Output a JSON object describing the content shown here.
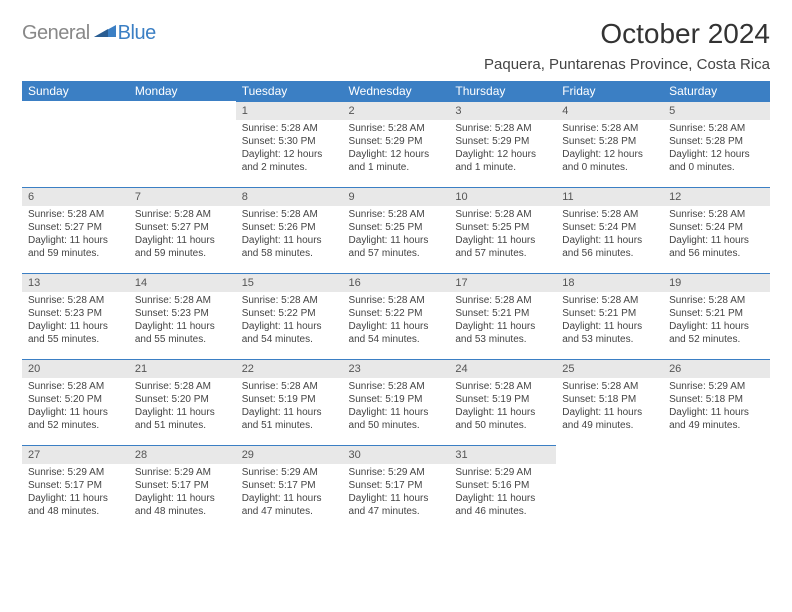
{
  "brand": {
    "part1": "General",
    "part2": "Blue"
  },
  "title": "October 2024",
  "location": "Paquera, Puntarenas Province, Costa Rica",
  "colors": {
    "accent": "#3b7fc4",
    "daybar": "#e8e8e8",
    "text": "#444444",
    "background": "#ffffff"
  },
  "dayHeaders": [
    "Sunday",
    "Monday",
    "Tuesday",
    "Wednesday",
    "Thursday",
    "Friday",
    "Saturday"
  ],
  "weeks": [
    [
      null,
      null,
      {
        "n": "1",
        "sr": "Sunrise: 5:28 AM",
        "ss": "Sunset: 5:30 PM",
        "dl": "Daylight: 12 hours and 2 minutes."
      },
      {
        "n": "2",
        "sr": "Sunrise: 5:28 AM",
        "ss": "Sunset: 5:29 PM",
        "dl": "Daylight: 12 hours and 1 minute."
      },
      {
        "n": "3",
        "sr": "Sunrise: 5:28 AM",
        "ss": "Sunset: 5:29 PM",
        "dl": "Daylight: 12 hours and 1 minute."
      },
      {
        "n": "4",
        "sr": "Sunrise: 5:28 AM",
        "ss": "Sunset: 5:28 PM",
        "dl": "Daylight: 12 hours and 0 minutes."
      },
      {
        "n": "5",
        "sr": "Sunrise: 5:28 AM",
        "ss": "Sunset: 5:28 PM",
        "dl": "Daylight: 12 hours and 0 minutes."
      }
    ],
    [
      {
        "n": "6",
        "sr": "Sunrise: 5:28 AM",
        "ss": "Sunset: 5:27 PM",
        "dl": "Daylight: 11 hours and 59 minutes."
      },
      {
        "n": "7",
        "sr": "Sunrise: 5:28 AM",
        "ss": "Sunset: 5:27 PM",
        "dl": "Daylight: 11 hours and 59 minutes."
      },
      {
        "n": "8",
        "sr": "Sunrise: 5:28 AM",
        "ss": "Sunset: 5:26 PM",
        "dl": "Daylight: 11 hours and 58 minutes."
      },
      {
        "n": "9",
        "sr": "Sunrise: 5:28 AM",
        "ss": "Sunset: 5:25 PM",
        "dl": "Daylight: 11 hours and 57 minutes."
      },
      {
        "n": "10",
        "sr": "Sunrise: 5:28 AM",
        "ss": "Sunset: 5:25 PM",
        "dl": "Daylight: 11 hours and 57 minutes."
      },
      {
        "n": "11",
        "sr": "Sunrise: 5:28 AM",
        "ss": "Sunset: 5:24 PM",
        "dl": "Daylight: 11 hours and 56 minutes."
      },
      {
        "n": "12",
        "sr": "Sunrise: 5:28 AM",
        "ss": "Sunset: 5:24 PM",
        "dl": "Daylight: 11 hours and 56 minutes."
      }
    ],
    [
      {
        "n": "13",
        "sr": "Sunrise: 5:28 AM",
        "ss": "Sunset: 5:23 PM",
        "dl": "Daylight: 11 hours and 55 minutes."
      },
      {
        "n": "14",
        "sr": "Sunrise: 5:28 AM",
        "ss": "Sunset: 5:23 PM",
        "dl": "Daylight: 11 hours and 55 minutes."
      },
      {
        "n": "15",
        "sr": "Sunrise: 5:28 AM",
        "ss": "Sunset: 5:22 PM",
        "dl": "Daylight: 11 hours and 54 minutes."
      },
      {
        "n": "16",
        "sr": "Sunrise: 5:28 AM",
        "ss": "Sunset: 5:22 PM",
        "dl": "Daylight: 11 hours and 54 minutes."
      },
      {
        "n": "17",
        "sr": "Sunrise: 5:28 AM",
        "ss": "Sunset: 5:21 PM",
        "dl": "Daylight: 11 hours and 53 minutes."
      },
      {
        "n": "18",
        "sr": "Sunrise: 5:28 AM",
        "ss": "Sunset: 5:21 PM",
        "dl": "Daylight: 11 hours and 53 minutes."
      },
      {
        "n": "19",
        "sr": "Sunrise: 5:28 AM",
        "ss": "Sunset: 5:21 PM",
        "dl": "Daylight: 11 hours and 52 minutes."
      }
    ],
    [
      {
        "n": "20",
        "sr": "Sunrise: 5:28 AM",
        "ss": "Sunset: 5:20 PM",
        "dl": "Daylight: 11 hours and 52 minutes."
      },
      {
        "n": "21",
        "sr": "Sunrise: 5:28 AM",
        "ss": "Sunset: 5:20 PM",
        "dl": "Daylight: 11 hours and 51 minutes."
      },
      {
        "n": "22",
        "sr": "Sunrise: 5:28 AM",
        "ss": "Sunset: 5:19 PM",
        "dl": "Daylight: 11 hours and 51 minutes."
      },
      {
        "n": "23",
        "sr": "Sunrise: 5:28 AM",
        "ss": "Sunset: 5:19 PM",
        "dl": "Daylight: 11 hours and 50 minutes."
      },
      {
        "n": "24",
        "sr": "Sunrise: 5:28 AM",
        "ss": "Sunset: 5:19 PM",
        "dl": "Daylight: 11 hours and 50 minutes."
      },
      {
        "n": "25",
        "sr": "Sunrise: 5:28 AM",
        "ss": "Sunset: 5:18 PM",
        "dl": "Daylight: 11 hours and 49 minutes."
      },
      {
        "n": "26",
        "sr": "Sunrise: 5:29 AM",
        "ss": "Sunset: 5:18 PM",
        "dl": "Daylight: 11 hours and 49 minutes."
      }
    ],
    [
      {
        "n": "27",
        "sr": "Sunrise: 5:29 AM",
        "ss": "Sunset: 5:17 PM",
        "dl": "Daylight: 11 hours and 48 minutes."
      },
      {
        "n": "28",
        "sr": "Sunrise: 5:29 AM",
        "ss": "Sunset: 5:17 PM",
        "dl": "Daylight: 11 hours and 48 minutes."
      },
      {
        "n": "29",
        "sr": "Sunrise: 5:29 AM",
        "ss": "Sunset: 5:17 PM",
        "dl": "Daylight: 11 hours and 47 minutes."
      },
      {
        "n": "30",
        "sr": "Sunrise: 5:29 AM",
        "ss": "Sunset: 5:17 PM",
        "dl": "Daylight: 11 hours and 47 minutes."
      },
      {
        "n": "31",
        "sr": "Sunrise: 5:29 AM",
        "ss": "Sunset: 5:16 PM",
        "dl": "Daylight: 11 hours and 46 minutes."
      },
      null,
      null
    ]
  ]
}
